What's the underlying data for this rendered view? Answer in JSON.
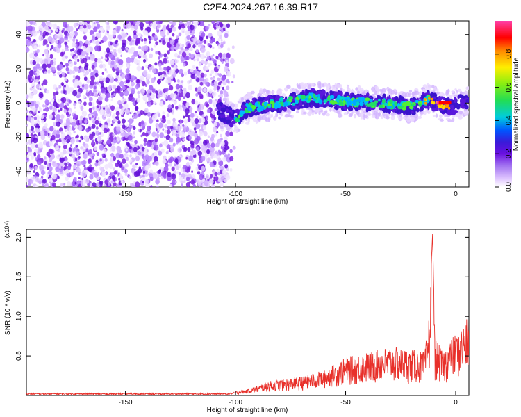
{
  "title": "C2E4.2024.267.16.39.R17",
  "chart_data": [
    {
      "type": "heatmap",
      "xlabel": "Height of straight line (km)",
      "ylabel": "Frequency (Hz)",
      "xlim": [
        -195,
        6
      ],
      "ylim": [
        -49,
        48
      ],
      "xticks": [
        -150,
        -100,
        -50,
        0
      ],
      "yticks": [
        -40,
        -20,
        0,
        20,
        40
      ],
      "colorbar": {
        "label": "Normalized spectral amplitude",
        "range": [
          0,
          1
        ],
        "ticks": [
          "0.0",
          "0.2",
          "0.4",
          "0.6",
          "0.8"
        ]
      },
      "ridge": {
        "description_points": [
          [
            -108,
            -4
          ],
          [
            -100,
            -10
          ],
          [
            -95,
            -3
          ],
          [
            -80,
            0
          ],
          [
            -65,
            3
          ],
          [
            -50,
            1
          ],
          [
            -35,
            0
          ],
          [
            -20,
            -2
          ],
          [
            -12,
            2
          ],
          [
            -8,
            -1
          ],
          [
            -3,
            -2
          ],
          [
            2,
            0
          ],
          [
            6,
            1
          ]
        ],
        "noise_region_x": [
          -195,
          -103
        ]
      },
      "colors": [
        "#ffffff",
        "#e6ccff",
        "#b380ff",
        "#7a1fe0",
        "#4a1fd6",
        "#0066ff",
        "#00cccc",
        "#33dd33",
        "#ffee00",
        "#ff8800",
        "#ff0000",
        "#ff33aa"
      ]
    },
    {
      "type": "line",
      "xlabel": "Height of straight line (km)",
      "ylabel": "SNR (10 * v/v)",
      "y_multiplier": "(x10⁴)",
      "xlim": [
        -195,
        6
      ],
      "ylim": [
        0,
        2.1
      ],
      "xticks": [
        -150,
        -100,
        -50,
        0
      ],
      "yticks": [
        "0.5",
        "1.0",
        "1.5",
        "2.0"
      ],
      "series": [
        {
          "color": "#e8302a",
          "envelope": [
            [
              -195,
              0.02
            ],
            [
              -110,
              0.02
            ],
            [
              -103,
              0.03
            ],
            [
              -95,
              0.08
            ],
            [
              -90,
              0.12
            ],
            [
              -85,
              0.18
            ],
            [
              -80,
              0.2
            ],
            [
              -70,
              0.24
            ],
            [
              -60,
              0.32
            ],
            [
              -50,
              0.48
            ],
            [
              -40,
              0.55
            ],
            [
              -30,
              0.62
            ],
            [
              -20,
              0.58
            ],
            [
              -14,
              0.55
            ],
            [
              -12,
              1.05
            ],
            [
              -10.5,
              2.05
            ],
            [
              -9.5,
              0.75
            ],
            [
              -6,
              0.55
            ],
            [
              -2,
              0.72
            ],
            [
              2,
              0.85
            ],
            [
              6,
              1.0
            ]
          ]
        }
      ]
    }
  ]
}
